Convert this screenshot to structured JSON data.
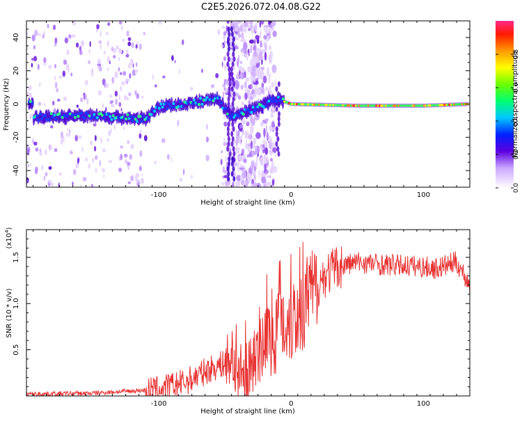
{
  "title": "C2E5.2026.072.04.08.G22",
  "chart_data": [
    {
      "type": "heatmap",
      "name": "spectrogram",
      "xlabel": "Height of straight line (km)",
      "ylabel": "Frequency (Hz)",
      "xlim": [
        -200,
        135
      ],
      "ylim": [
        -50,
        50
      ],
      "xticks": [
        -100,
        0,
        100
      ],
      "yticks": [
        -40,
        -20,
        0,
        20,
        40
      ],
      "colorbar": {
        "label": "Normalized spectral amplitude",
        "range": [
          0,
          1
        ],
        "ticks": [
          "0.0",
          "0.2",
          "0.4",
          "0.6",
          "0.8"
        ],
        "tick_values": [
          0,
          0.2,
          0.4,
          0.6,
          0.8
        ]
      },
      "signal_track": [
        {
          "x": -195,
          "freq": -8
        },
        {
          "x": -150,
          "freq": -7
        },
        {
          "x": -110,
          "freq": -9
        },
        {
          "x": -100,
          "freq": -2
        },
        {
          "x": -55,
          "freq": 3
        },
        {
          "x": -45,
          "freq": -8
        },
        {
          "x": -10,
          "freq": 3
        },
        {
          "x": 0,
          "freq": 0
        },
        {
          "x": 50,
          "freq": -1
        },
        {
          "x": 100,
          "freq": -1
        },
        {
          "x": 135,
          "freq": 0
        }
      ]
    },
    {
      "type": "line",
      "name": "snr",
      "xlabel": "Height of straight line (km)",
      "ylabel": "SNR (10 * v/v)",
      "y_multiplier": "(x10",
      "y_exponent": "4",
      "y_multiplier_close": ")",
      "xlim": [
        -200,
        135
      ],
      "ylim": [
        0,
        18000
      ],
      "xticks": [
        -100,
        0,
        100
      ],
      "yticks": [
        5000,
        10000,
        15000
      ],
      "ytick_labels": [
        "0.5",
        "1.0",
        "1.5"
      ],
      "series": [
        {
          "name": "SNR",
          "color": "#e83232",
          "x": [
            -200,
            -150,
            -100,
            -80,
            -60,
            -45,
            -35,
            -25,
            -15,
            -5,
            5,
            15,
            25,
            35,
            50,
            70,
            90,
            110,
            125,
            135
          ],
          "values": [
            200,
            300,
            700,
            1500,
            3000,
            3800,
            2000,
            4500,
            7000,
            8000,
            8800,
            11000,
            13000,
            14000,
            14500,
            14200,
            14100,
            13800,
            14500,
            12000
          ]
        }
      ]
    }
  ],
  "colors": {
    "background": "#ffffff",
    "line": "#e83232"
  }
}
